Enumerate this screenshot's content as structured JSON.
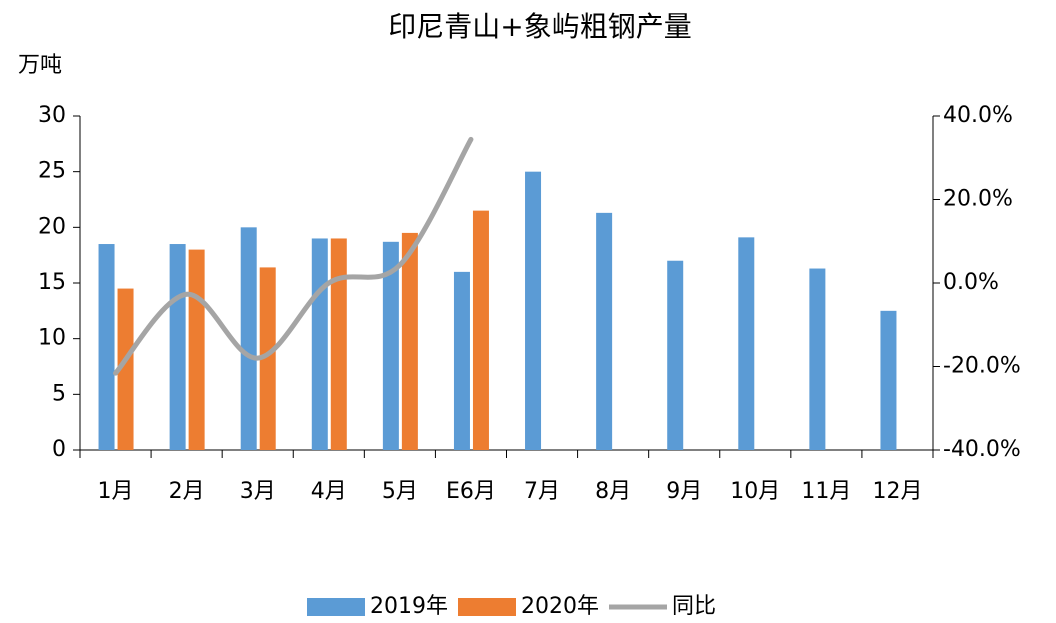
{
  "chart_data": {
    "type": "bar",
    "title": "印尼青山+象屿粗钢产量",
    "y_label": "万吨",
    "categories": [
      "1月",
      "2月",
      "3月",
      "4月",
      "5月",
      "E6月",
      "7月",
      "8月",
      "9月",
      "10月",
      "11月",
      "12月"
    ],
    "series": [
      {
        "name": "2019年",
        "color": "#5b9bd5",
        "type": "bar",
        "values": [
          18.5,
          18.5,
          20,
          19,
          18.7,
          16,
          25,
          21.3,
          17,
          19.1,
          16.3,
          12.5
        ]
      },
      {
        "name": "2020年",
        "color": "#ed7d31",
        "type": "bar",
        "values": [
          14.5,
          18,
          16.4,
          19,
          19.5,
          21.5,
          null,
          null,
          null,
          null,
          null,
          null
        ]
      },
      {
        "name": "同比",
        "color": "#a5a5a5",
        "type": "line",
        "axis": "y2",
        "values": [
          -21.6,
          -2.7,
          -18,
          0,
          4.3,
          34.4,
          null,
          null,
          null,
          null,
          null,
          null
        ]
      }
    ],
    "ylim": [
      0,
      30
    ],
    "yticks": [
      0,
      5,
      10,
      15,
      20,
      25,
      30
    ],
    "y2lim": [
      -40,
      40
    ],
    "y2ticks": [
      {
        "value": 40,
        "label": "40.0%"
      },
      {
        "value": 20,
        "label": "20.0%"
      },
      {
        "value": 0,
        "label": "0.0%"
      },
      {
        "value": -20,
        "label": "-20.0%"
      },
      {
        "value": -40,
        "label": "-40.0%"
      }
    ],
    "legend": "bottom"
  }
}
